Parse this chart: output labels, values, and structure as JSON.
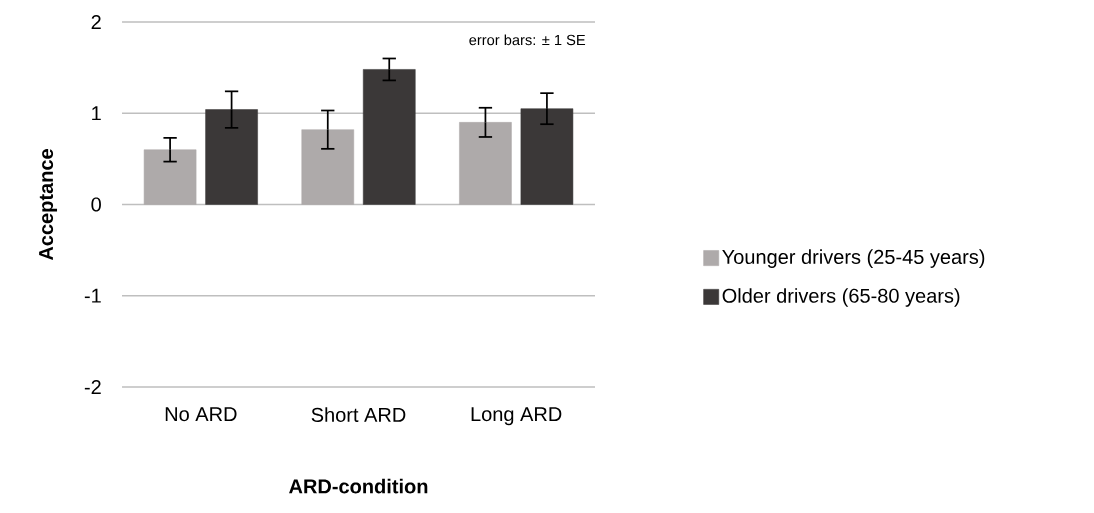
{
  "chart_data": {
    "type": "bar",
    "xlabel": "ARD-condition",
    "ylabel": "Acceptance",
    "categories": [
      "No ARD",
      "Short ARD",
      "Long ARD"
    ],
    "series": [
      {
        "name": "Younger drivers (25-45 years)",
        "color": "#aeaaaa",
        "values": [
          0.6,
          0.82,
          0.9
        ],
        "errors": [
          0.13,
          0.21,
          0.16
        ]
      },
      {
        "name": "Older drivers (65-80 years)",
        "color": "#3b3838",
        "values": [
          1.04,
          1.48,
          1.05
        ],
        "errors": [
          0.2,
          0.12,
          0.17
        ]
      }
    ],
    "ylim": [
      -2,
      2
    ],
    "yticks": [
      -2,
      -1,
      0,
      1,
      2
    ],
    "grid": "y",
    "legend": "right",
    "annotations": [
      "error bars: ± 1 SE"
    ]
  }
}
